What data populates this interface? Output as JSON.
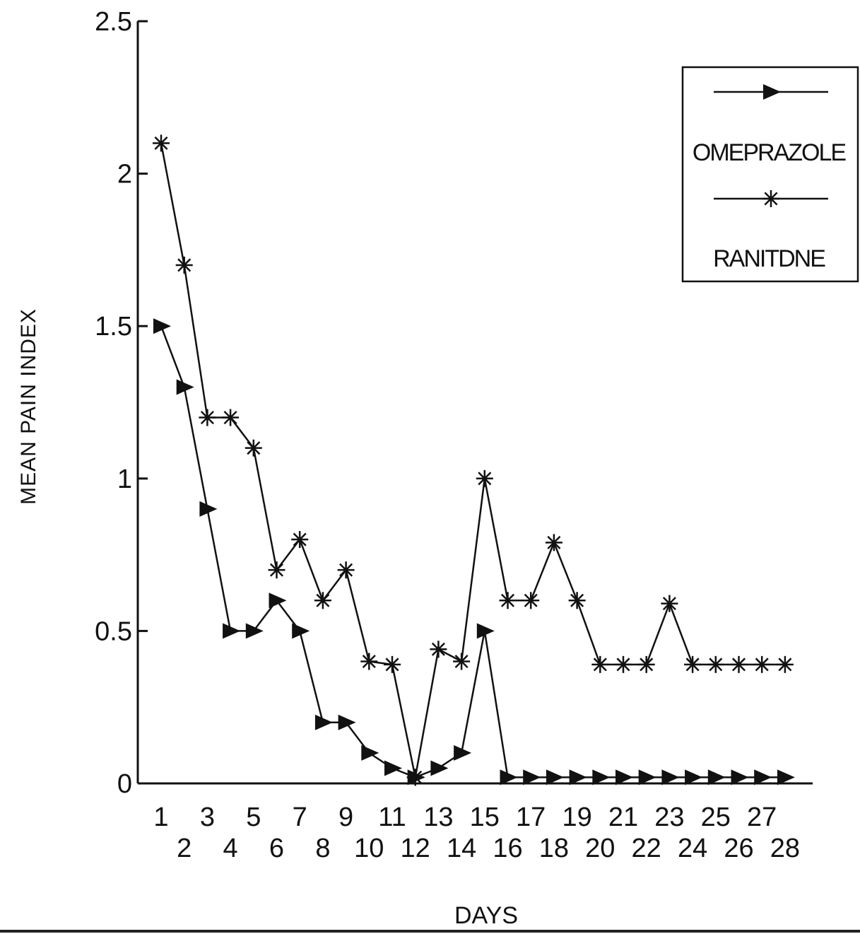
{
  "chart_data": {
    "type": "line",
    "xlabel": "DAYS",
    "ylabel": "MEAN PAIN INDEX",
    "ylim": [
      0,
      2.5
    ],
    "yticks": [
      "0",
      "0.5",
      "1",
      "1.5",
      "2",
      "2.5"
    ],
    "x": [
      1,
      2,
      3,
      4,
      5,
      6,
      7,
      8,
      9,
      10,
      11,
      12,
      13,
      14,
      15,
      16,
      17,
      18,
      19,
      20,
      21,
      22,
      23,
      24,
      25,
      26,
      27,
      28
    ],
    "x_tick_labels_top": [
      "1",
      "3",
      "5",
      "7",
      "9",
      "11",
      "13",
      "15",
      "17",
      "19",
      "21",
      "23",
      "25",
      "27"
    ],
    "x_tick_labels_bottom": [
      "2",
      "4",
      "6",
      "8",
      "10",
      "12",
      "14",
      "16",
      "18",
      "20",
      "22",
      "24",
      "26",
      "28"
    ],
    "legend_position": "top-right",
    "series": [
      {
        "name": "OMEPRAZOLE",
        "marker": "triangle-right",
        "values": [
          1.5,
          1.3,
          0.9,
          0.5,
          0.5,
          0.6,
          0.5,
          0.2,
          0.2,
          0.1,
          0.05,
          0.02,
          0.05,
          0.1,
          0.5,
          0.02,
          0.02,
          0.02,
          0.02,
          0.02,
          0.02,
          0.02,
          0.02,
          0.02,
          0.02,
          0.02,
          0.02,
          0.02
        ]
      },
      {
        "name": "RANITDNE",
        "marker": "asterisk",
        "values": [
          2.1,
          1.7,
          1.2,
          1.2,
          1.1,
          0.7,
          0.8,
          0.6,
          0.7,
          0.4,
          0.39,
          0.02,
          0.44,
          0.4,
          1.0,
          0.6,
          0.6,
          0.79,
          0.6,
          0.39,
          0.39,
          0.39,
          0.59,
          0.39,
          0.39,
          0.39,
          0.39,
          0.39
        ]
      }
    ]
  }
}
